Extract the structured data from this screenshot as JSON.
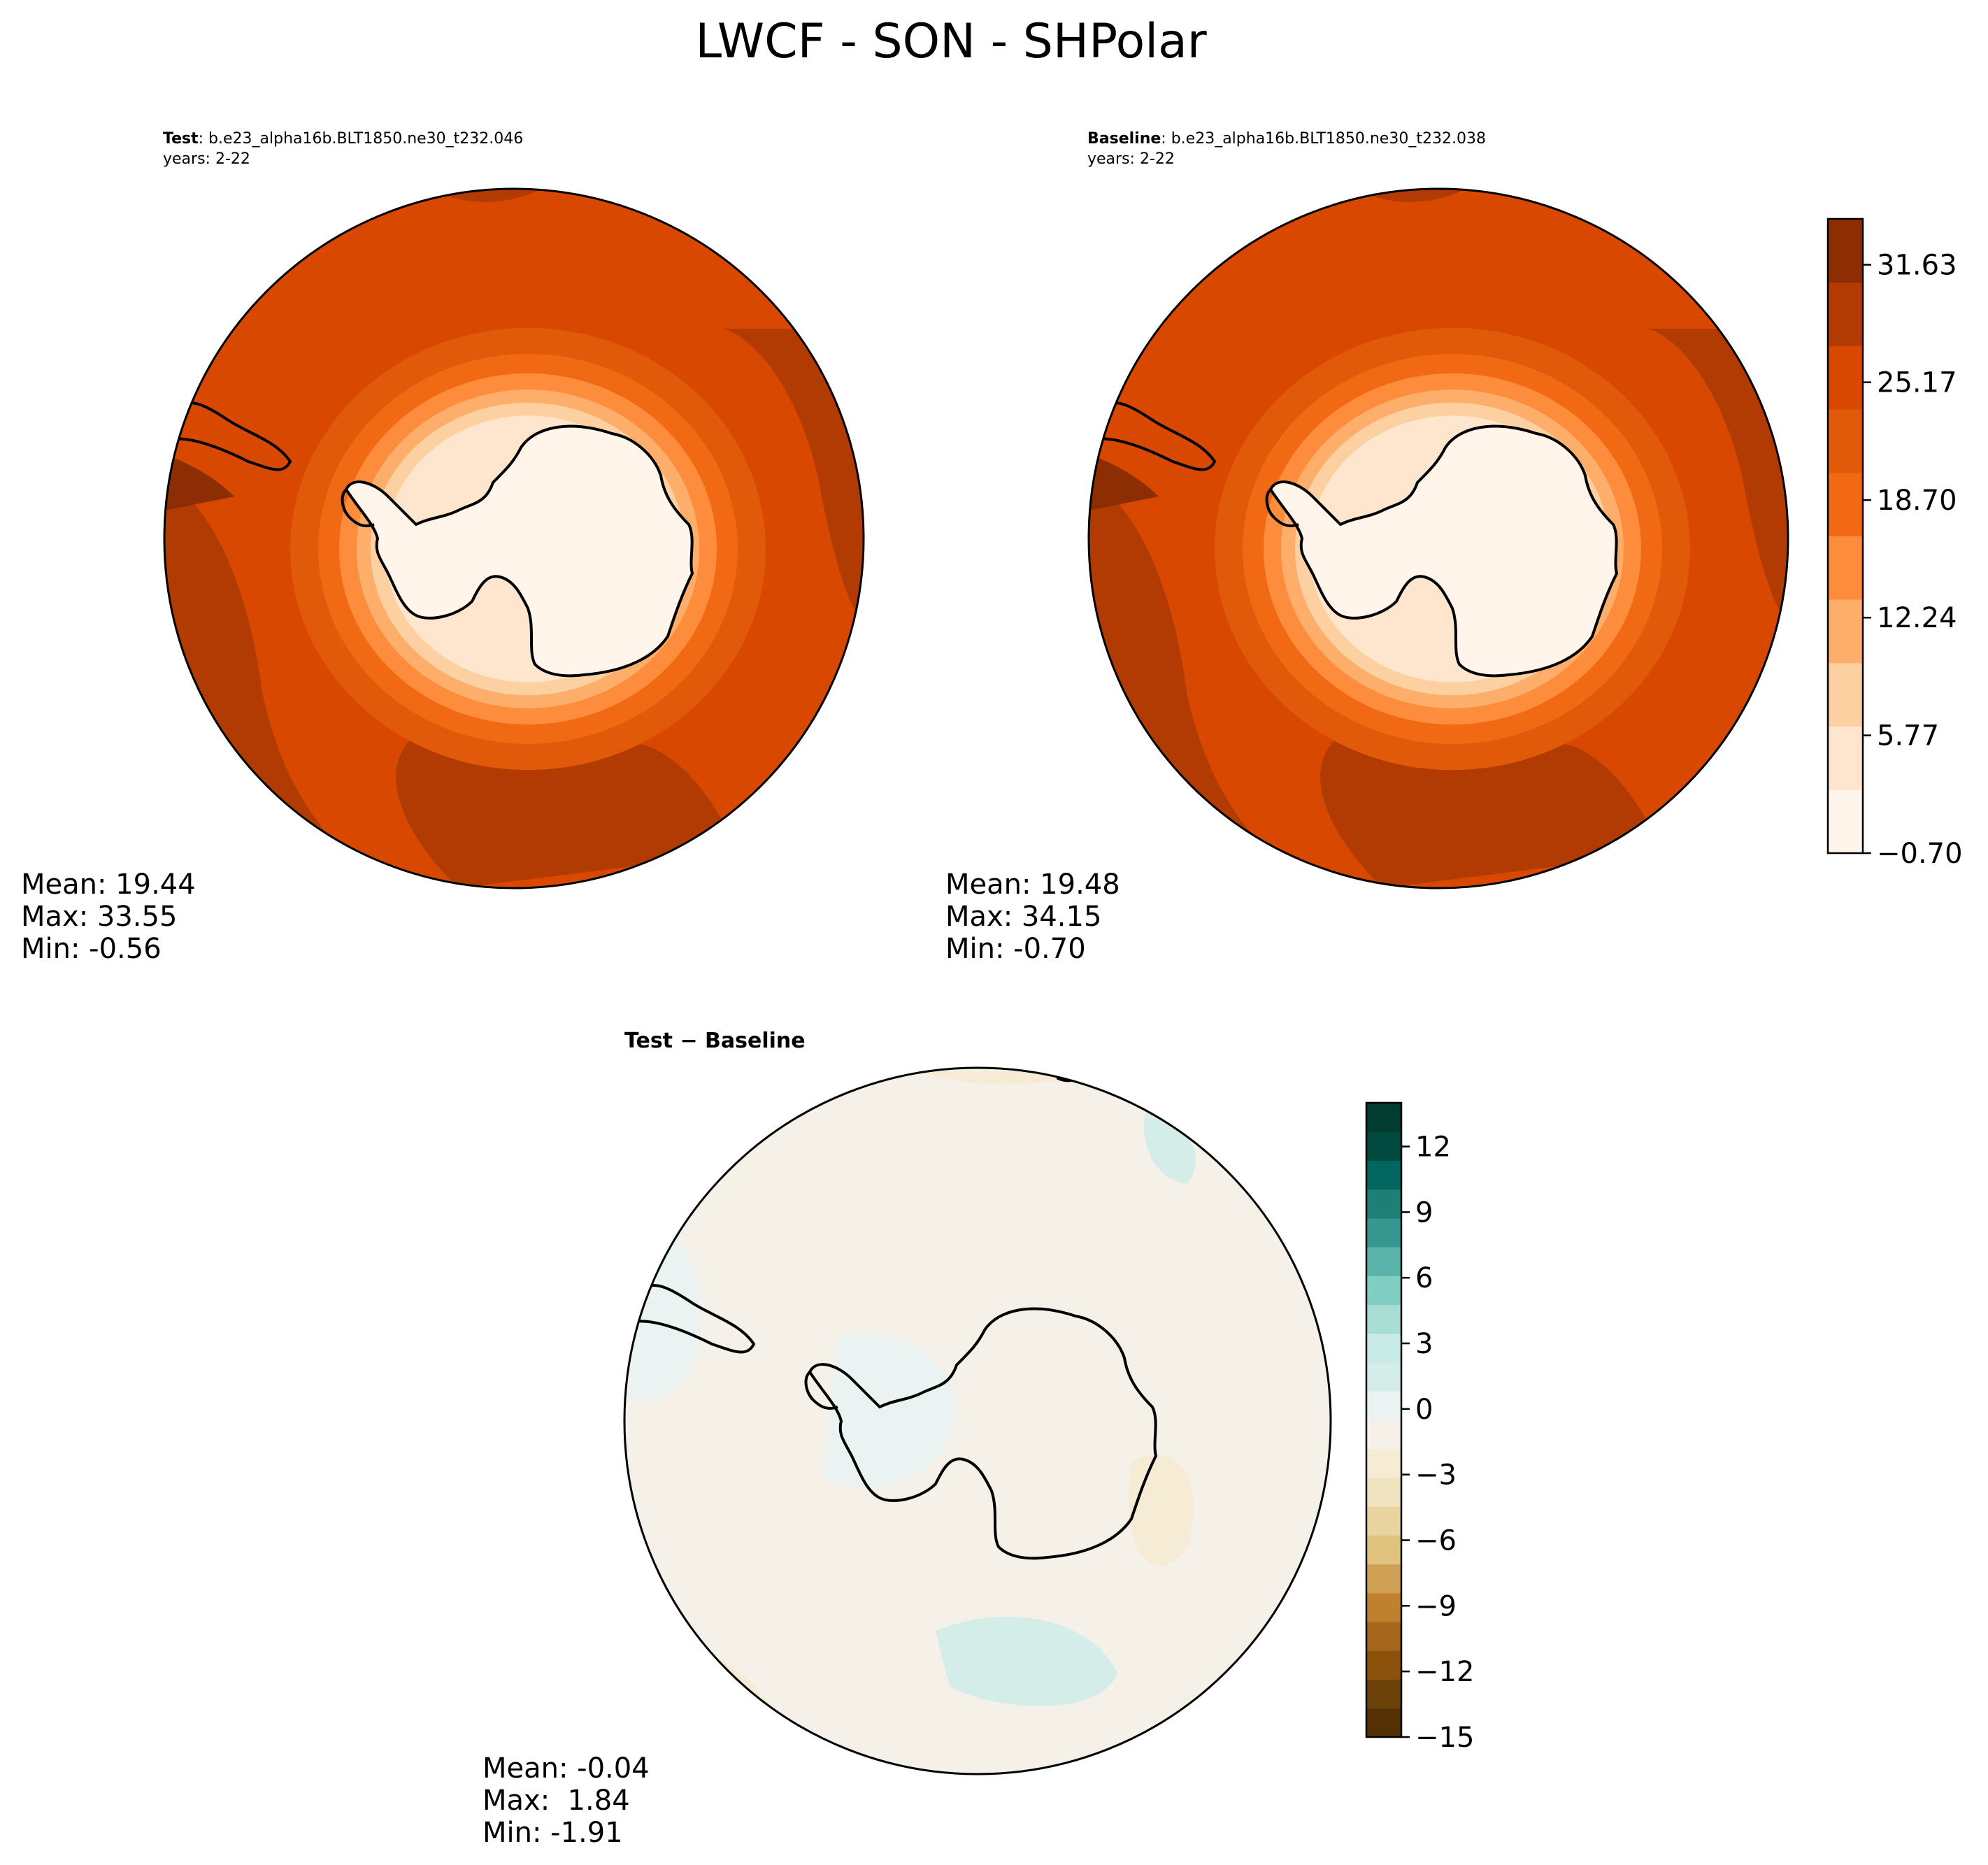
{
  "figure": {
    "title": "LWCF - SON - SHPolar"
  },
  "chart_data": [
    {
      "type": "heatmap",
      "projection": "south-polar-stereographic",
      "title_bold": "Test",
      "title_rest": ": b.e23_alpha16b.BLT1850.ne30_t232.046",
      "subtitle": "years: 2-22",
      "stats": {
        "mean": "Mean: 19.44",
        "max": "Max: 33.55",
        "min": "Min: -0.56"
      },
      "field_summary": {
        "mean": 19.44,
        "max": 33.55,
        "min": -0.56
      },
      "colorbar": "shared-absolute"
    },
    {
      "type": "heatmap",
      "projection": "south-polar-stereographic",
      "title_bold": "Baseline",
      "title_rest": ": b.e23_alpha16b.BLT1850.ne30_t232.038",
      "subtitle": "years: 2-22",
      "stats": {
        "mean": "Mean: 19.48",
        "max": "Max: 34.15",
        "min": "Min: -0.70"
      },
      "field_summary": {
        "mean": 19.48,
        "max": 34.15,
        "min": -0.7
      },
      "colorbar": "shared-absolute"
    },
    {
      "type": "heatmap",
      "projection": "south-polar-stereographic",
      "title_bold": "Test − Baseline",
      "title_rest": "",
      "subtitle": "",
      "stats": {
        "mean": "Mean: -0.04",
        "max": "Max:  1.84",
        "min": "Min: -1.91"
      },
      "field_summary": {
        "mean": -0.04,
        "max": 1.84,
        "min": -1.91
      },
      "colorbar": "difference"
    }
  ],
  "colorbars": {
    "absolute": {
      "range": [
        -0.7,
        34.15
      ],
      "tick_values": [
        -0.7,
        5.77,
        12.24,
        18.7,
        25.17,
        31.63
      ],
      "tick_labels": [
        "−0.70",
        "5.77",
        "12.24",
        "18.70",
        "25.17",
        "31.63"
      ],
      "colors": [
        "#fff5eb",
        "#fee6ce",
        "#fdd0a2",
        "#fdae6b",
        "#fd8d3c",
        "#f16913",
        "#e15a0a",
        "#d94801",
        "#b13b03",
        "#8c2d04"
      ]
    },
    "difference": {
      "range": [
        -15,
        14
      ],
      "tick_values": [
        -15,
        -12,
        -9,
        -6,
        -3,
        0,
        3,
        6,
        9,
        12
      ],
      "tick_labels": [
        "−15",
        "−12",
        "−9",
        "−6",
        "−3",
        "0",
        "3",
        "6",
        "9",
        "12"
      ],
      "colors": [
        "#543005",
        "#6d420a",
        "#8c510a",
        "#a6661b",
        "#bf812d",
        "#cfa154",
        "#dfc27d",
        "#e8d49f",
        "#f0e3bf",
        "#f6ebd5",
        "#f5f1e8",
        "#eaf3f1",
        "#d4ede9",
        "#c7eae5",
        "#a8ddd4",
        "#80cdc1",
        "#5ab4a9",
        "#35978f",
        "#1d7f76",
        "#01665e",
        "#004a40",
        "#003c30"
      ]
    }
  }
}
